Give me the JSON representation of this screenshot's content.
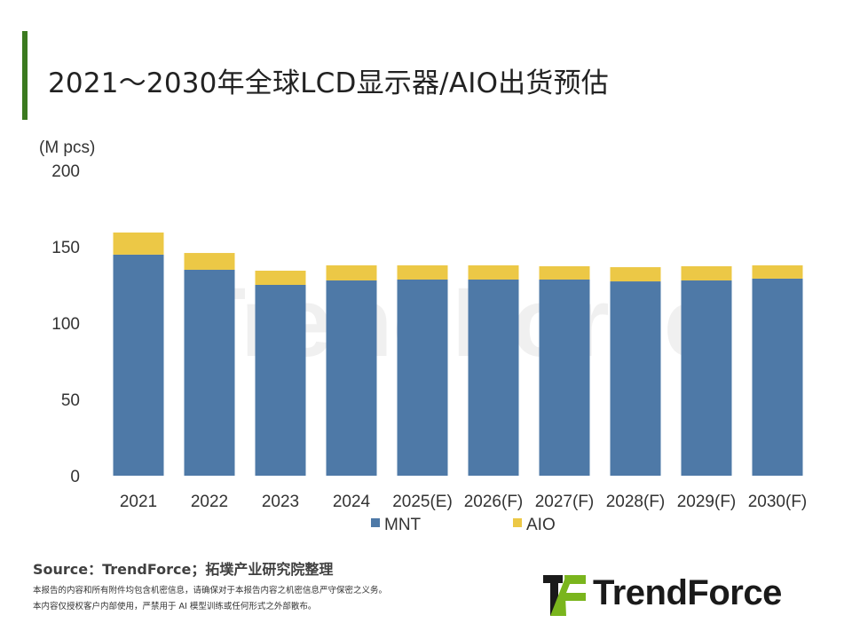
{
  "title": "2021～2030年全球LCD显示器/AIO出货预估",
  "watermark": "TrendForce",
  "chart_data": {
    "type": "bar",
    "stacked": true,
    "title": "2021～2030年全球LCD显示器/AIO出货预估",
    "ylabel": "(M pcs)",
    "xlabel": "",
    "ylim": [
      0,
      200
    ],
    "yticks": [
      0,
      50,
      100,
      150,
      200
    ],
    "grid": false,
    "legend": "bottom",
    "categories": [
      "2021",
      "2022",
      "2023",
      "2024",
      "2025(E)",
      "2026(F)",
      "2027(F)",
      "2028(F)",
      "2029(F)",
      "2030(F)"
    ],
    "series": [
      {
        "name": "MNT",
        "color": "#4e79a7",
        "values": [
          144.8,
          134.9,
          125.0,
          127.9,
          128.5,
          128.5,
          128.5,
          127.3,
          127.9,
          129.1
        ]
      },
      {
        "name": "AIO",
        "color": "#ecc846",
        "values": [
          14.5,
          11.0,
          9.3,
          9.9,
          9.3,
          9.3,
          8.7,
          9.3,
          9.3,
          8.7
        ]
      }
    ]
  },
  "footer": {
    "source": "Source：TrendForce；拓墣产业研究院整理",
    "disclaimer_1": "本报告的内容和所有附件均包含机密信息，请确保对于本报告内容之机密信息严守保密之义务。",
    "disclaimer_2": "本内容仅授权客户内部使用，严禁用于 AI 模型训练或任何形式之外部散布。",
    "logo_text": "TrendForce"
  }
}
